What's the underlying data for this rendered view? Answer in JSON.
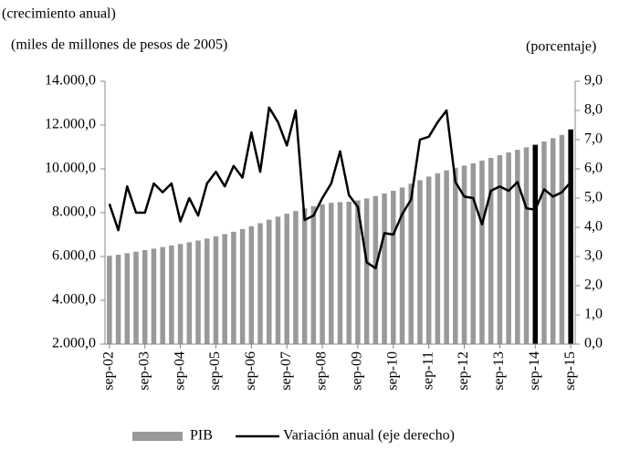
{
  "chart_data": {
    "type": "bar_line",
    "subtitle": "(crecimiento anual)",
    "y_label": "(miles de millones de pesos de 2005)",
    "y2_label": "(porcentaje)",
    "categories": [
      "sep-02",
      null,
      null,
      null,
      "sep-03",
      null,
      null,
      null,
      "sep-04",
      null,
      null,
      null,
      "sep-05",
      null,
      null,
      null,
      "sep-06",
      null,
      null,
      null,
      "sep-07",
      null,
      null,
      null,
      "sep-08",
      null,
      null,
      null,
      "sep-09",
      null,
      null,
      null,
      "sep-10",
      null,
      null,
      null,
      "sep-11",
      null,
      null,
      null,
      "sep-12",
      null,
      null,
      null,
      "sep-13",
      null,
      null,
      null,
      "sep-14",
      null,
      null,
      null,
      "sep-15"
    ],
    "series": [
      {
        "name": "PIB",
        "type": "bar",
        "color": "#999999",
        "colors": [
          "#999999",
          "#999999",
          "#999999",
          "#999999",
          "#999999",
          "#999999",
          "#999999",
          "#999999",
          "#999999",
          "#999999",
          "#999999",
          "#999999",
          "#999999",
          "#999999",
          "#999999",
          "#999999",
          "#999999",
          "#999999",
          "#999999",
          "#999999",
          "#999999",
          "#999999",
          "#999999",
          "#999999",
          "#999999",
          "#999999",
          "#999999",
          "#999999",
          "#999999",
          "#999999",
          "#999999",
          "#999999",
          "#999999",
          "#999999",
          "#999999",
          "#999999",
          "#999999",
          "#999999",
          "#999999",
          "#999999",
          "#999999",
          "#999999",
          "#999999",
          "#999999",
          "#999999",
          "#999999",
          "#999999",
          "#999999",
          "#000000",
          "#999999",
          "#999999",
          "#999999",
          "#000000"
        ],
        "values": [
          6030,
          6080,
          6150,
          6220,
          6290,
          6360,
          6430,
          6500,
          6570,
          6650,
          6730,
          6820,
          6920,
          7020,
          7130,
          7250,
          7380,
          7520,
          7680,
          7820,
          7950,
          8080,
          8200,
          8300,
          8380,
          8450,
          8480,
          8500,
          8560,
          8650,
          8760,
          8880,
          9000,
          9150,
          9320,
          9480,
          9650,
          9800,
          9930,
          10050,
          10150,
          10250,
          10380,
          10500,
          10620,
          10750,
          10870,
          10980,
          11100,
          11250,
          11400,
          11550,
          11800
        ]
      },
      {
        "name": "Variación anual (eje derecho)",
        "type": "line",
        "axis": "y2",
        "color": "#000000",
        "values": [
          4.8,
          3.9,
          5.4,
          4.5,
          4.5,
          5.5,
          5.2,
          5.5,
          4.2,
          5.0,
          4.4,
          5.5,
          5.9,
          5.4,
          6.1,
          5.7,
          7.25,
          5.9,
          8.1,
          7.6,
          6.8,
          8.0,
          4.25,
          4.4,
          5.0,
          5.5,
          6.6,
          5.1,
          4.7,
          2.8,
          2.6,
          3.8,
          3.75,
          4.45,
          4.95,
          7.0,
          7.1,
          7.6,
          8.0,
          5.55,
          5.05,
          5.0,
          4.1,
          5.25,
          5.4,
          5.25,
          5.55,
          4.65,
          4.6,
          5.3,
          5.05,
          5.2,
          5.55
        ]
      }
    ],
    "ylim": [
      2000,
      14000
    ],
    "yticks": [
      {
        "value": 2000,
        "label": "2.000,0"
      },
      {
        "value": 4000,
        "label": "4.000,0"
      },
      {
        "value": 6000,
        "label": "6.000,0"
      },
      {
        "value": 8000,
        "label": "8.000,0"
      },
      {
        "value": 10000,
        "label": "10.000,0"
      },
      {
        "value": 12000,
        "label": "12.000,0"
      },
      {
        "value": 14000,
        "label": "14.000,0"
      }
    ],
    "y2lim": [
      0,
      9
    ],
    "y2ticks": [
      {
        "value": 0,
        "label": "0,0"
      },
      {
        "value": 1,
        "label": "1,0"
      },
      {
        "value": 2,
        "label": "2,0"
      },
      {
        "value": 3,
        "label": "3,0"
      },
      {
        "value": 4,
        "label": "4,0"
      },
      {
        "value": 5,
        "label": "5,0"
      },
      {
        "value": 6,
        "label": "6,0"
      },
      {
        "value": 7,
        "label": "7,0"
      },
      {
        "value": 8,
        "label": "8,0"
      },
      {
        "value": 9,
        "label": "9,0"
      }
    ],
    "grid": false
  }
}
